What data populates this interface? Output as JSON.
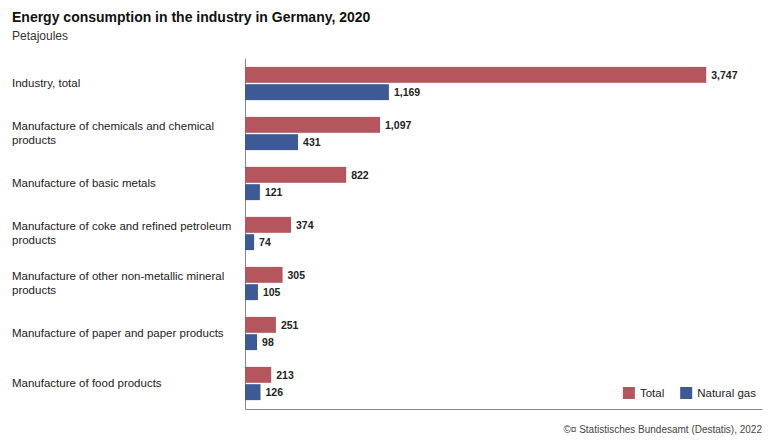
{
  "chart_data": {
    "type": "bar",
    "orientation": "horizontal",
    "title": "Energy consumption in the industry in Germany, 2020",
    "subtitle": "Petajoules",
    "categories": [
      "Industry, total",
      "Manufacture of chemicals and chemical\nproducts",
      "Manufacture of basic metals",
      "Manufacture of coke and refined petroleum\nproducts",
      "Manufacture of other non-metallic mineral\nproducts",
      "Manufacture of paper and paper products",
      "Manufacture of food products"
    ],
    "series": [
      {
        "name": "Total",
        "color": "#b5555e",
        "values": [
          3747,
          1097,
          822,
          374,
          305,
          251,
          213
        ],
        "value_labels": [
          "3,747",
          "1,097",
          "822",
          "374",
          "305",
          "251",
          "213"
        ]
      },
      {
        "name": "Natural gas",
        "color": "#3d5a96",
        "values": [
          1169,
          431,
          121,
          74,
          105,
          98,
          126
        ],
        "value_labels": [
          "1,169",
          "431",
          "121",
          "74",
          "105",
          "98",
          "126"
        ]
      }
    ],
    "xlim": [
      0,
      4200
    ],
    "data_labels": true,
    "tick_labels": "y",
    "legend": "lower right",
    "annotations": [
      "©¤ Statistisches Bundesamt (Destatis), 2022"
    ]
  }
}
